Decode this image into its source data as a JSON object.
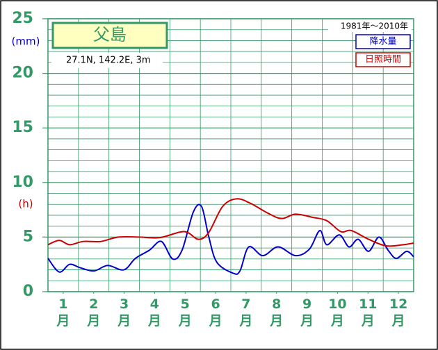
{
  "chart_data": {
    "type": "line",
    "title": "父島",
    "subtitle": "27.1N, 142.2E, 3m",
    "period": "1981年～2010年",
    "y_unit_precip": "(mm)",
    "y_unit_sun": "(h)",
    "xlim": [
      0,
      12
    ],
    "xticks": [
      {
        "value": 0.5,
        "label": "1月"
      },
      {
        "value": 1.5,
        "label": "2月"
      },
      {
        "value": 2.5,
        "label": "3月"
      },
      {
        "value": 3.5,
        "label": "4月"
      },
      {
        "value": 4.5,
        "label": "5月"
      },
      {
        "value": 5.5,
        "label": "6月"
      },
      {
        "value": 6.5,
        "label": "7月"
      },
      {
        "value": 7.5,
        "label": "8月"
      },
      {
        "value": 8.5,
        "label": "9月"
      },
      {
        "value": 9.5,
        "label": "10月"
      },
      {
        "value": 10.5,
        "label": "11月"
      },
      {
        "value": 11.5,
        "label": "12月"
      }
    ],
    "ylim": [
      0,
      25
    ],
    "yticks": [
      0,
      5,
      10,
      15,
      20,
      25
    ],
    "grid": true,
    "series": [
      {
        "name": "降水量",
        "color": "#0000cc",
        "x": [
          0,
          0.37,
          0.71,
          1.05,
          1.51,
          1.96,
          2.49,
          2.87,
          3.33,
          3.72,
          4.09,
          4.4,
          4.77,
          5.04,
          5.27,
          5.54,
          6.07,
          6.3,
          6.59,
          7.05,
          7.55,
          8.12,
          8.58,
          8.92,
          9.15,
          9.56,
          9.88,
          10.18,
          10.52,
          10.86,
          11.16,
          11.43,
          11.77,
          12
        ],
        "values": [
          3.05,
          1.8,
          2.5,
          2.2,
          1.9,
          2.4,
          2.0,
          3.05,
          3.8,
          4.6,
          3.0,
          3.8,
          7.3,
          7.8,
          5.1,
          2.7,
          1.7,
          1.9,
          4.1,
          3.3,
          4.1,
          3.3,
          3.9,
          5.6,
          4.3,
          5.2,
          4.1,
          4.8,
          3.7,
          5.0,
          3.8,
          3.05,
          3.7,
          3.2
        ]
      },
      {
        "name": "日照時間",
        "color": "#cc0000",
        "x": [
          0,
          0.37,
          0.71,
          1.16,
          1.73,
          2.31,
          2.99,
          3.67,
          4.47,
          4.93,
          5.27,
          5.73,
          6.18,
          6.64,
          7.21,
          7.67,
          8.12,
          8.7,
          9.15,
          9.61,
          9.95,
          10.52,
          11.09,
          11.66,
          12
        ],
        "values": [
          4.3,
          4.7,
          4.3,
          4.6,
          4.6,
          5.0,
          5.0,
          4.95,
          5.5,
          4.8,
          5.4,
          7.8,
          8.5,
          8.1,
          7.2,
          6.7,
          7.1,
          6.8,
          6.5,
          5.5,
          5.6,
          4.8,
          4.2,
          4.3,
          4.45
        ]
      }
    ]
  }
}
